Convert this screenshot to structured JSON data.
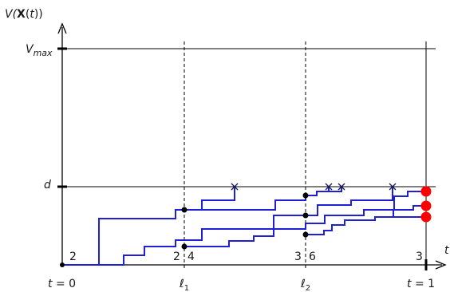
{
  "axes": {
    "y_label_prefix": "V(",
    "y_label_bold": "X",
    "y_label_t": "t",
    "y_label_suffix": "))",
    "x_label": "t",
    "vmax_label_base": "V",
    "vmax_label_sub": "max",
    "d_label": "d"
  },
  "bottom_labels": {
    "t0_t": "t",
    "t0_rest": " = 0",
    "l1_base": "ℓ",
    "l1_sub": "1",
    "l2_base": "ℓ",
    "l2_sub": "2",
    "t1_t": "t",
    "t1_rest": " = 1"
  },
  "counts": {
    "start": "2",
    "l1_left": "2",
    "l1_right": "4",
    "l2_left": "3",
    "l2_right": "6",
    "end": "3"
  },
  "colors": {
    "path": "#1f1fd6",
    "terminal": "#ff0000",
    "axis": "#000000"
  },
  "legend_none": ""
}
